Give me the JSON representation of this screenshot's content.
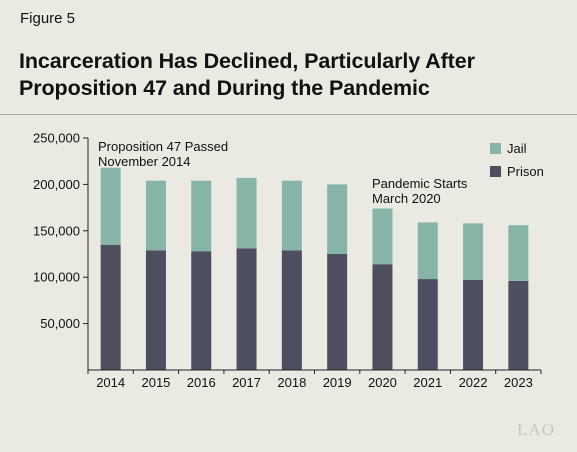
{
  "figure_label": "Figure 5",
  "title_line1": "Incarceration Has Declined, Particularly After",
  "title_line2": "Proposition 47 and During the Pandemic",
  "logo_text": "LAO",
  "colors": {
    "jail": "#86b5a8",
    "prison": "#4e4e61",
    "background": "#eaeae3"
  },
  "chart_data": {
    "type": "bar",
    "stacked": true,
    "categories": [
      "2014",
      "2015",
      "2016",
      "2017",
      "2018",
      "2019",
      "2020",
      "2021",
      "2022",
      "2023"
    ],
    "series": [
      {
        "name": "Prison",
        "values": [
          135000,
          129000,
          128000,
          131000,
          129000,
          125000,
          114000,
          98000,
          97000,
          96000
        ]
      },
      {
        "name": "Jail",
        "values": [
          83000,
          75000,
          76000,
          76000,
          75000,
          75000,
          60000,
          61000,
          61000,
          60000
        ]
      }
    ],
    "y_ticks": [
      50000,
      100000,
      150000,
      200000,
      250000
    ],
    "y_tick_labels": [
      "50,000",
      "100,000",
      "150,000",
      "200,000",
      "250,000"
    ],
    "ylim": [
      0,
      250000
    ],
    "legend_position": "top-right",
    "legend": [
      "Jail",
      "Prison"
    ],
    "annotations": [
      {
        "lines": [
          "Proposition 47 Passed",
          "November 2014"
        ],
        "category": "2014"
      },
      {
        "lines": [
          "Pandemic Starts",
          "March 2020"
        ],
        "category": "2020"
      }
    ]
  }
}
